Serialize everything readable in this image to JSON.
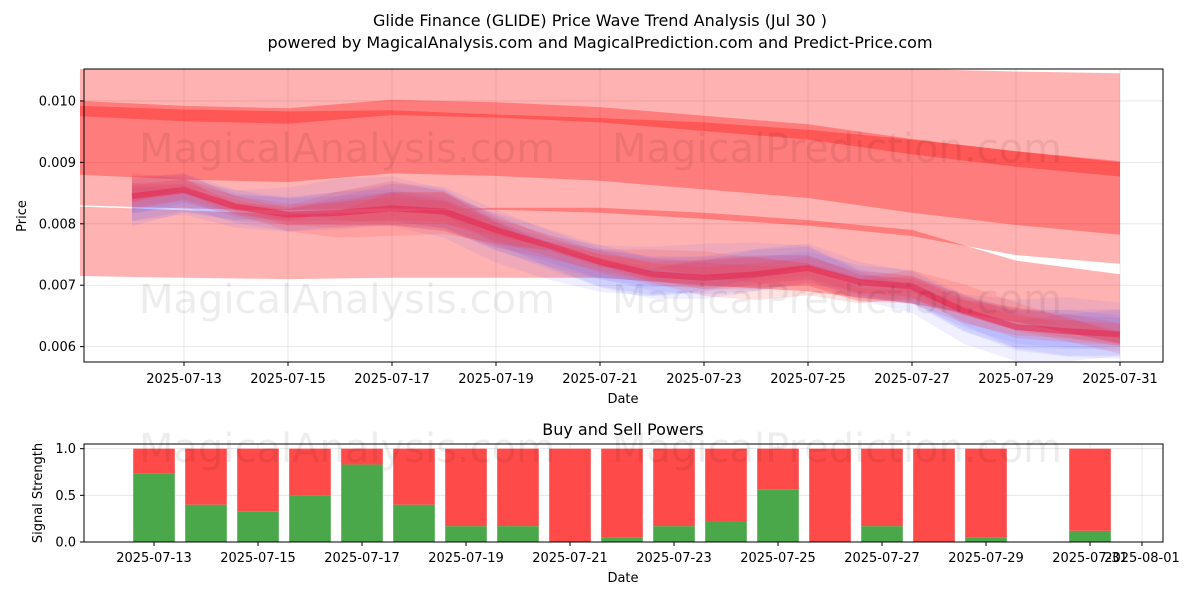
{
  "title": "Glide Finance (GLIDE) Price Wave Trend Analysis (Jul 30 )",
  "subtitle": "powered by MagicalAnalysis.com and MagicalPrediction.com and Predict-Price.com",
  "watermarks": [
    "MagicalAnalysis.com",
    "MagicalPrediction.com"
  ],
  "colors": {
    "band": "#ff0000",
    "wave_red": "#ff3030",
    "wave_blue": "#5050ff",
    "buy": "#4aa84a",
    "sell": "#ff4a4a"
  },
  "chart_data": [
    {
      "type": "area",
      "xlabel": "Date",
      "ylabel": "Price",
      "ylim": [
        0.00575,
        0.01052
      ],
      "grid": true,
      "x_ticks": [
        "2025-07-13",
        "2025-07-15",
        "2025-07-17",
        "2025-07-19",
        "2025-07-21",
        "2025-07-23",
        "2025-07-25",
        "2025-07-27",
        "2025-07-29",
        "2025-07-31"
      ],
      "y_ticks": [
        "0.006",
        "0.007",
        "0.008",
        "0.009",
        "0.010"
      ],
      "bands": [
        {
          "x": [
            "2025-07-11",
            "2025-07-13",
            "2025-07-15",
            "2025-07-17",
            "2025-07-19",
            "2025-07-21",
            "2025-07-23",
            "2025-07-25",
            "2025-07-27",
            "2025-07-29",
            "2025-07-31"
          ],
          "upper": [
            0.01052,
            0.01052,
            0.01052,
            0.01052,
            0.01052,
            0.01052,
            0.01052,
            0.01052,
            0.01052,
            0.01048,
            0.01045
          ],
          "lower": [
            0.0088,
            0.00872,
            0.00868,
            0.00882,
            0.00878,
            0.0087,
            0.00856,
            0.00842,
            0.00818,
            0.00798,
            0.00782
          ]
        },
        {
          "x": [
            "2025-07-11",
            "2025-07-13",
            "2025-07-15",
            "2025-07-17",
            "2025-07-19",
            "2025-07-21",
            "2025-07-23",
            "2025-07-25",
            "2025-07-27",
            "2025-07-29",
            "2025-07-31"
          ],
          "upper": [
            0.00992,
            0.00986,
            0.00983,
            0.00985,
            0.00978,
            0.00972,
            0.00965,
            0.00953,
            0.00937,
            0.00918,
            0.009
          ],
          "lower": [
            0.0083,
            0.00825,
            0.00822,
            0.00825,
            0.00823,
            0.00818,
            0.00808,
            0.00797,
            0.0078,
            0.00749,
            0.00735
          ]
        },
        {
          "x": [
            "2025-07-11",
            "2025-07-13",
            "2025-07-15",
            "2025-07-17",
            "2025-07-19",
            "2025-07-21",
            "2025-07-23",
            "2025-07-25",
            "2025-07-27",
            "2025-07-29",
            "2025-07-31"
          ],
          "upper": [
            0.00828,
            0.00822,
            0.00815,
            0.0082,
            0.00826,
            0.00826,
            0.00818,
            0.00806,
            0.0079,
            0.0074,
            0.00718
          ],
          "lower": [
            0.00715,
            0.00712,
            0.0071,
            0.00712,
            0.00712,
            0.00712,
            0.007,
            0.0069,
            0.0067,
            0.0064,
            0.00605
          ]
        }
      ],
      "price_wave": {
        "x": [
          "2025-07-12",
          "2025-07-13",
          "2025-07-14",
          "2025-07-15",
          "2025-07-16",
          "2025-07-17",
          "2025-07-18",
          "2025-07-19",
          "2025-07-20",
          "2025-07-21",
          "2025-07-22",
          "2025-07-23",
          "2025-07-24",
          "2025-07-25",
          "2025-07-26",
          "2025-07-27",
          "2025-07-28",
          "2025-07-29",
          "2025-07-30",
          "2025-07-31"
        ],
        "y": [
          0.00845,
          0.00855,
          0.00828,
          0.00815,
          0.00818,
          0.00825,
          0.0082,
          0.0079,
          0.00765,
          0.00738,
          0.00718,
          0.00712,
          0.00718,
          0.00728,
          0.00705,
          0.00698,
          0.00658,
          0.00632,
          0.00625,
          0.0062
        ],
        "spread": 0.0003
      }
    },
    {
      "type": "bar",
      "title": "Buy and Sell Powers",
      "xlabel": "Date",
      "ylabel": "Signal Strength",
      "ylim": [
        0,
        1.05
      ],
      "x_ticks": [
        "2025-07-13",
        "2025-07-15",
        "2025-07-17",
        "2025-07-19",
        "2025-07-21",
        "2025-07-23",
        "2025-07-25",
        "2025-07-27",
        "2025-07-29",
        "2025-07-31",
        "2025-08-01"
      ],
      "y_ticks": [
        "0.0",
        "0.5",
        "1.0"
      ],
      "categories": [
        "2025-07-13",
        "2025-07-14",
        "2025-07-15",
        "2025-07-16",
        "2025-07-17",
        "2025-07-18",
        "2025-07-19",
        "2025-07-20",
        "2025-07-21",
        "2025-07-22",
        "2025-07-23",
        "2025-07-24",
        "2025-07-25",
        "2025-07-26",
        "2025-07-27",
        "2025-07-28",
        "2025-07-29",
        "2025-07-31"
      ],
      "series": [
        {
          "values": [
            0.73,
            0.4,
            0.33,
            0.5,
            0.83,
            0.4,
            0.17,
            0.17,
            0.0,
            0.05,
            0.17,
            0.22,
            0.56,
            0.0,
            0.17,
            0.0,
            0.05,
            0.12
          ]
        },
        {
          "values": [
            0.27,
            0.6,
            0.67,
            0.5,
            0.17,
            0.6,
            0.83,
            0.83,
            1.0,
            0.95,
            0.83,
            0.78,
            0.44,
            1.0,
            0.83,
            1.0,
            0.95,
            0.88
          ]
        }
      ]
    }
  ]
}
